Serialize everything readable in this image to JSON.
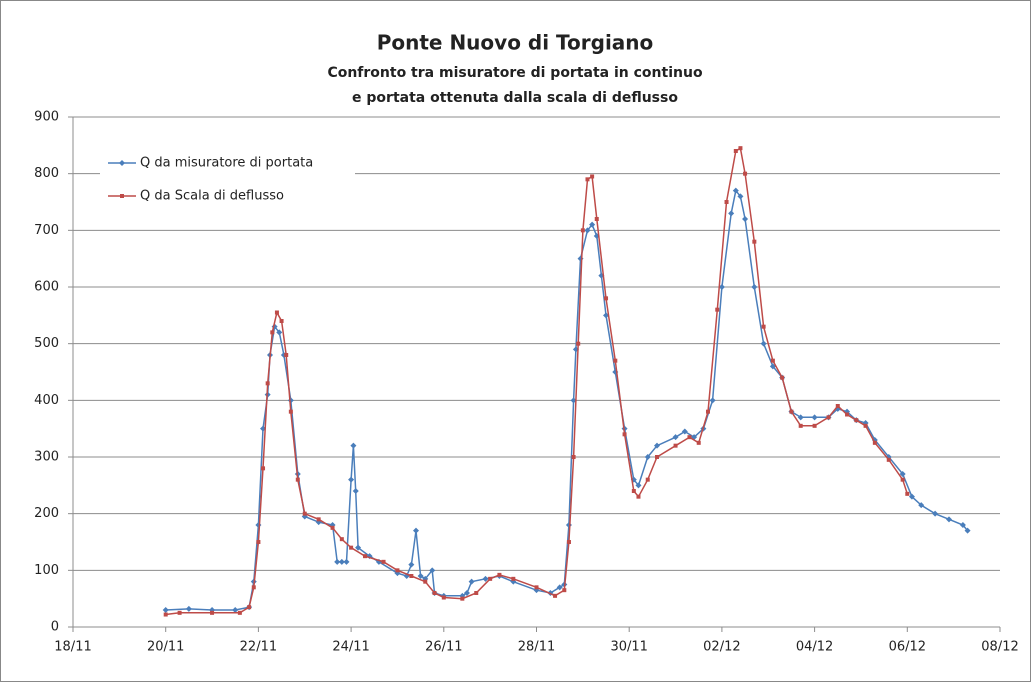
{
  "chart_data": {
    "type": "line",
    "title": "Ponte Nuovo di Torgiano",
    "subtitle": [
      "Confronto tra misuratore di portata in continuo",
      "e portata ottenuta dalla scala di deflusso"
    ],
    "xlim": [
      18,
      38
    ],
    "xticks": [
      {
        "value": 18,
        "label": "18/11"
      },
      {
        "value": 20,
        "label": "20/11"
      },
      {
        "value": 22,
        "label": "22/11"
      },
      {
        "value": 24,
        "label": "24/11"
      },
      {
        "value": 26,
        "label": "26/11"
      },
      {
        "value": 28,
        "label": "28/11"
      },
      {
        "value": 30,
        "label": "30/11"
      },
      {
        "value": 32,
        "label": "02/12"
      },
      {
        "value": 34,
        "label": "04/12"
      },
      {
        "value": 36,
        "label": "06/12"
      },
      {
        "value": 38,
        "label": "08/12"
      }
    ],
    "ylim": [
      0,
      900
    ],
    "yticks": [
      0,
      100,
      200,
      300,
      400,
      500,
      600,
      700,
      800,
      900
    ],
    "grid": true,
    "legend": "upper left",
    "series": [
      {
        "name": "Q da misuratore di portata",
        "color": "#4a7ebb",
        "marker": "diamond",
        "x": [
          20.0,
          20.5,
          21.0,
          21.5,
          21.8,
          21.9,
          22.0,
          22.1,
          22.2,
          22.25,
          22.35,
          22.45,
          22.55,
          22.7,
          22.85,
          23.0,
          23.3,
          23.6,
          23.7,
          23.8,
          23.9,
          24.0,
          24.05,
          24.1,
          24.15,
          24.4,
          24.6,
          25.0,
          25.2,
          25.3,
          25.4,
          25.5,
          25.6,
          25.75,
          25.8,
          26.0,
          26.4,
          26.5,
          26.6,
          26.9,
          27.2,
          27.5,
          28.0,
          28.3,
          28.5,
          28.6,
          28.7,
          28.8,
          28.85,
          28.95,
          29.1,
          29.2,
          29.3,
          29.4,
          29.5,
          29.7,
          29.9,
          30.1,
          30.2,
          30.4,
          30.6,
          31.0,
          31.2,
          31.4,
          31.6,
          31.8,
          32.0,
          32.2,
          32.3,
          32.4,
          32.5,
          32.7,
          32.9,
          33.1,
          33.3,
          33.5,
          33.7,
          34.0,
          34.3,
          34.5,
          34.7,
          34.9,
          35.1,
          35.3,
          35.6,
          35.9,
          36.1,
          36.3,
          36.6,
          36.9,
          37.2,
          37.3
        ],
        "values": [
          30,
          32,
          30,
          30,
          35,
          80,
          180,
          350,
          410,
          480,
          530,
          520,
          480,
          400,
          270,
          195,
          185,
          180,
          115,
          115,
          115,
          260,
          320,
          240,
          140,
          125,
          115,
          95,
          90,
          110,
          170,
          90,
          85,
          100,
          60,
          55,
          55,
          60,
          80,
          85,
          90,
          80,
          65,
          60,
          70,
          75,
          180,
          400,
          490,
          650,
          700,
          710,
          690,
          620,
          550,
          450,
          350,
          260,
          250,
          300,
          320,
          335,
          345,
          335,
          350,
          400,
          600,
          730,
          770,
          760,
          720,
          600,
          500,
          460,
          440,
          380,
          370,
          370,
          370,
          385,
          380,
          365,
          360,
          330,
          300,
          270,
          230,
          215,
          200,
          190,
          180,
          170
        ]
      },
      {
        "name": "Q da Scala di deflusso",
        "color": "#be4b48",
        "marker": "square",
        "x": [
          20.0,
          20.3,
          21.0,
          21.6,
          21.8,
          21.9,
          22.0,
          22.1,
          22.2,
          22.3,
          22.4,
          22.5,
          22.6,
          22.7,
          22.85,
          23.0,
          23.3,
          23.6,
          23.8,
          24.0,
          24.3,
          24.7,
          25.0,
          25.3,
          25.6,
          25.8,
          26.0,
          26.4,
          26.7,
          27.0,
          27.2,
          27.5,
          28.0,
          28.4,
          28.6,
          28.7,
          28.8,
          28.9,
          29.0,
          29.1,
          29.2,
          29.3,
          29.5,
          29.7,
          29.9,
          30.1,
          30.2,
          30.4,
          30.6,
          31.0,
          31.3,
          31.5,
          31.7,
          31.9,
          32.1,
          32.3,
          32.4,
          32.5,
          32.7,
          32.9,
          33.1,
          33.3,
          33.5,
          33.7,
          34.0,
          34.3,
          34.5,
          34.7,
          34.9,
          35.1,
          35.3,
          35.6,
          35.9,
          36.0
        ],
        "values": [
          22,
          25,
          25,
          25,
          35,
          70,
          150,
          280,
          430,
          520,
          555,
          540,
          480,
          380,
          260,
          200,
          190,
          175,
          155,
          140,
          125,
          115,
          100,
          90,
          80,
          60,
          52,
          50,
          60,
          85,
          92,
          85,
          70,
          55,
          65,
          150,
          300,
          500,
          700,
          790,
          795,
          720,
          580,
          470,
          340,
          240,
          230,
          260,
          300,
          320,
          335,
          325,
          380,
          560,
          750,
          840,
          845,
          800,
          680,
          530,
          470,
          440,
          380,
          355,
          355,
          370,
          390,
          375,
          365,
          355,
          325,
          295,
          260,
          235
        ]
      }
    ]
  }
}
